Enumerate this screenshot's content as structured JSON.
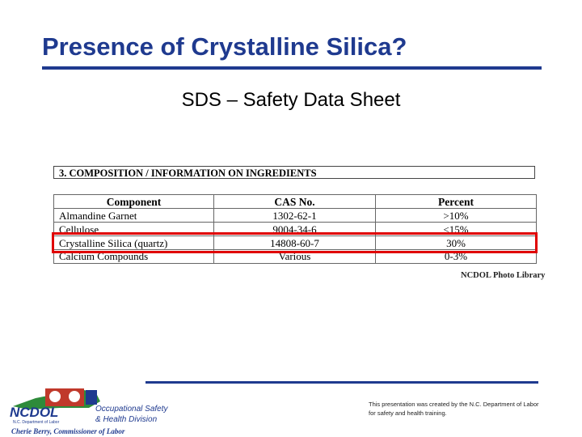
{
  "slide": {
    "title": "Presence of Crystalline Silica?",
    "subtitle": "SDS – Safety Data Sheet",
    "section_heading": "3.  COMPOSITION / INFORMATION ON INGREDIENTS",
    "table": {
      "headers": [
        "Component",
        "CAS No.",
        "Percent"
      ],
      "rows": [
        [
          "Almandine Garnet",
          "1302-62-1",
          ">10%"
        ],
        [
          "Cellulose",
          "9004-34-6",
          "<15%"
        ],
        [
          "Crystalline Silica (quartz)",
          "14808-60-7",
          "30%"
        ],
        [
          "Calcium Compounds",
          "Various",
          "0-3%"
        ]
      ],
      "highlighted_row": 2,
      "highlight_color": "#e00000"
    },
    "photo_credit": "NCDOL Photo Library",
    "footer_text": "This presentation was created by the N.C. Department of Labor for safety and health training.",
    "accent_color": "#1f3a8f"
  },
  "logo": {
    "name": "NCDOL",
    "department": "N.C. Department of Labor",
    "division_line1": "Occupational Safety",
    "division_line2": "& Health Division",
    "commissioner": "Cherie Berry, Commissioner of Labor"
  }
}
